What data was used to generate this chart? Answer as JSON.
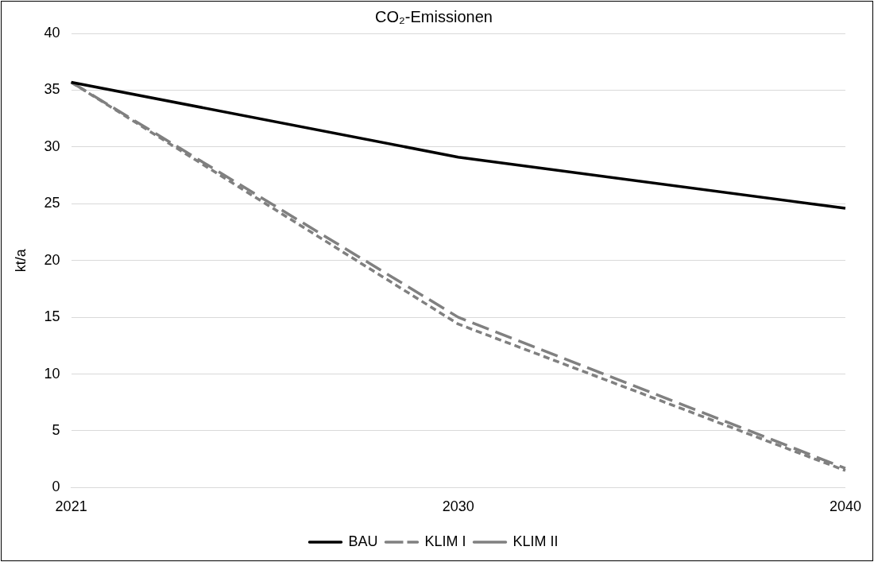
{
  "chart_data": {
    "type": "line",
    "title": "CO₂-Emissionen",
    "ylabel": "kt/a",
    "categories": [
      "2021",
      "2030",
      "2040"
    ],
    "series": [
      {
        "name": "BAU",
        "color": "#000000",
        "values": [
          35.7,
          29.1,
          24.6
        ],
        "line_style": "solid"
      },
      {
        "name": "KLIM I",
        "color": "#808080",
        "values": [
          35.7,
          15.0,
          1.7
        ],
        "line_style": "dashed"
      },
      {
        "name": "KLIM II",
        "color": "#808080",
        "values": [
          35.7,
          14.4,
          1.5
        ],
        "line_style": "dotted"
      }
    ],
    "ylim": [
      0,
      40
    ],
    "yticks": [
      0,
      5,
      10,
      15,
      20,
      25,
      30,
      35,
      40
    ],
    "grid": "y",
    "legend": "bottom",
    "marker": "none"
  }
}
